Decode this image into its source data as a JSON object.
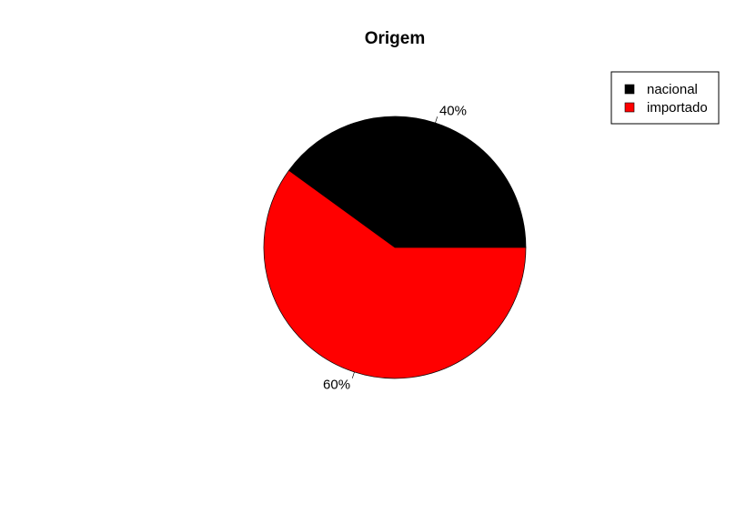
{
  "chart_data": {
    "type": "pie",
    "title": "Origem",
    "start_angle_deg": 0,
    "direction": "counterclockwise",
    "slices": [
      {
        "name": "nacional",
        "value": 40,
        "label": "40%",
        "color": "#000000"
      },
      {
        "name": "importado",
        "value": 60,
        "label": "60%",
        "color": "#ff0000"
      }
    ],
    "legend": {
      "position": "top-right",
      "items": [
        "nacional",
        "importado"
      ]
    }
  }
}
